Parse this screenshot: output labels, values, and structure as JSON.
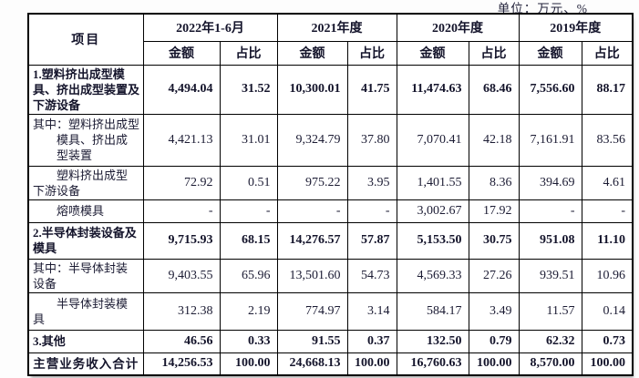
{
  "unit_note": "单位：万元、%",
  "colors": {
    "text": "#1b1b33",
    "border": "#000000",
    "background": "#ffffff"
  },
  "table": {
    "item_header": "项目",
    "amount_label": "金额",
    "ratio_label": "占比",
    "periods": [
      "2022年1-6月",
      "2021年度",
      "2020年度",
      "2019年度"
    ],
    "rows": [
      {
        "label": "1.塑料挤出成型模\n具、挤出成型装置及\n下游设备",
        "bold": true,
        "center": false,
        "values": [
          "4,494.04",
          "31.52",
          "10,300.01",
          "41.75",
          "11,474.63",
          "68.46",
          "7,556.60",
          "88.17"
        ]
      },
      {
        "label": "其中：塑料挤出成型\n　　模具、挤出成\n　　型装置",
        "bold": false,
        "center": false,
        "values": [
          "4,421.13",
          "31.01",
          "9,324.79",
          "37.80",
          "7,070.41",
          "42.18",
          "7,161.91",
          "83.56"
        ]
      },
      {
        "label": "　　塑料挤出成型\n下游设备",
        "bold": false,
        "center": false,
        "values": [
          "72.92",
          "0.51",
          "975.22",
          "3.95",
          "1,401.55",
          "8.36",
          "394.69",
          "4.61"
        ]
      },
      {
        "label": "　　熔喷模具",
        "bold": false,
        "center": false,
        "values": [
          "-",
          "-",
          "-",
          "-",
          "3,002.67",
          "17.92",
          "-",
          "-"
        ]
      },
      {
        "label": "2.半导体封装设备及\n模具",
        "bold": true,
        "center": false,
        "values": [
          "9,715.93",
          "68.15",
          "14,276.57",
          "57.87",
          "5,153.50",
          "30.75",
          "951.08",
          "11.10"
        ]
      },
      {
        "label": "其中：半导体封装\n设备",
        "bold": false,
        "center": false,
        "values": [
          "9,403.55",
          "65.96",
          "13,501.60",
          "54.73",
          "4,569.33",
          "27.26",
          "939.51",
          "10.96"
        ]
      },
      {
        "label": "　　半导体封装模\n具",
        "bold": false,
        "center": false,
        "values": [
          "312.38",
          "2.19",
          "774.97",
          "3.14",
          "584.17",
          "3.49",
          "11.57",
          "0.14"
        ]
      },
      {
        "label": "3.其他",
        "bold": true,
        "center": false,
        "values": [
          "46.56",
          "0.33",
          "91.55",
          "0.37",
          "132.50",
          "0.79",
          "62.32",
          "0.73"
        ]
      },
      {
        "label": "主营业务收入合计",
        "bold": true,
        "center": true,
        "values": [
          "14,256.53",
          "100.00",
          "24,668.13",
          "100.00",
          "16,760.63",
          "100.00",
          "8,570.00",
          "100.00"
        ]
      }
    ]
  }
}
